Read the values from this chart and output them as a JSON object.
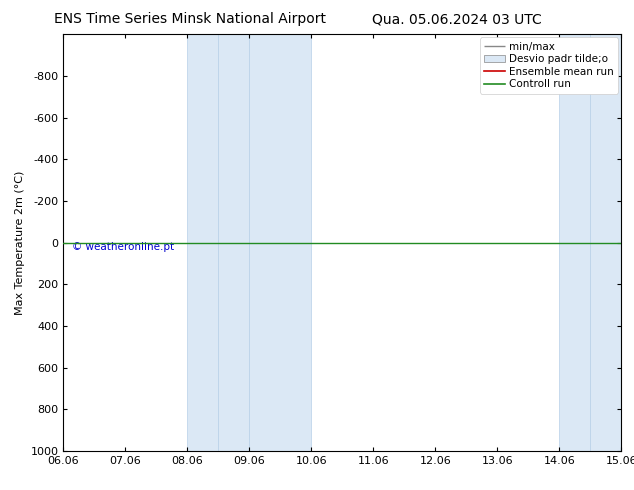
{
  "title_left": "ENS Time Series Minsk National Airport",
  "title_right": "Qua. 05.06.2024 03 UTC",
  "ylabel": "Max Temperature 2m (°C)",
  "ylim_bottom": 1000,
  "ylim_top": -1000,
  "yticks": [
    -800,
    -600,
    -400,
    -200,
    0,
    200,
    400,
    600,
    800,
    1000
  ],
  "xlim_start": 0,
  "xlim_end": 9,
  "xtick_labels": [
    "06.06",
    "07.06",
    "08.06",
    "09.06",
    "10.06",
    "11.06",
    "12.06",
    "13.06",
    "14.06",
    "15.06"
  ],
  "xtick_positions": [
    0,
    1,
    2,
    3,
    4,
    5,
    6,
    7,
    8,
    9
  ],
  "shaded_bands": [
    {
      "xmin": 2.0,
      "xmax": 2.5
    },
    {
      "xmin": 2.5,
      "xmax": 3.0
    },
    {
      "xmin": 3.0,
      "xmax": 4.0
    },
    {
      "xmin": 8.0,
      "xmax": 8.5
    },
    {
      "xmin": 8.5,
      "xmax": 9.0
    }
  ],
  "shade_color": "#dbe8f5",
  "shade_border_color": "#b8d0e8",
  "green_line_y": 0,
  "green_line_color": "#228B22",
  "background_color": "#ffffff",
  "plot_bg_color": "#ffffff",
  "copyright_text": "© weatheronline.pt",
  "copyright_color": "#0000cd",
  "title_fontsize": 10,
  "axis_label_fontsize": 8,
  "tick_fontsize": 8,
  "legend_fontsize": 7.5
}
